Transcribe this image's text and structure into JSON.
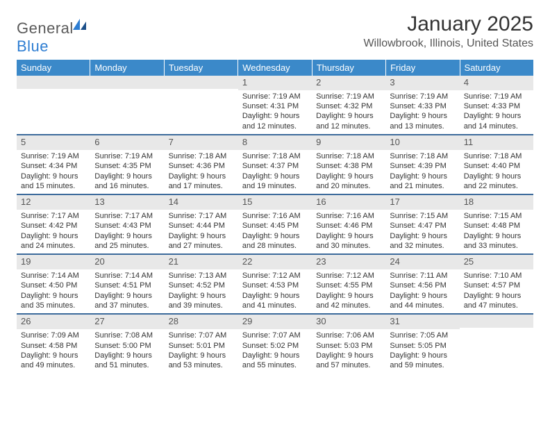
{
  "logo": {
    "word1": "General",
    "word2": "Blue"
  },
  "title": "January 2025",
  "location": "Willowbrook, Illinois, United States",
  "colors": {
    "header_bg": "#3b89c9",
    "header_text": "#ffffff",
    "daynum_bg": "#e8e8e8",
    "week_divider": "#3b6a9b",
    "body_text": "#333333",
    "logo_gray": "#5a5a5a",
    "logo_blue": "#2d7dd2"
  },
  "fonts": {
    "base_family": "Arial",
    "title_size_pt": 22,
    "header_size_pt": 10,
    "body_size_pt": 8
  },
  "day_names": [
    "Sunday",
    "Monday",
    "Tuesday",
    "Wednesday",
    "Thursday",
    "Friday",
    "Saturday"
  ],
  "weeks": [
    [
      null,
      null,
      null,
      {
        "n": "1",
        "sr": "7:19 AM",
        "ss": "4:31 PM",
        "dl": "9 hours and 12 minutes."
      },
      {
        "n": "2",
        "sr": "7:19 AM",
        "ss": "4:32 PM",
        "dl": "9 hours and 12 minutes."
      },
      {
        "n": "3",
        "sr": "7:19 AM",
        "ss": "4:33 PM",
        "dl": "9 hours and 13 minutes."
      },
      {
        "n": "4",
        "sr": "7:19 AM",
        "ss": "4:33 PM",
        "dl": "9 hours and 14 minutes."
      }
    ],
    [
      {
        "n": "5",
        "sr": "7:19 AM",
        "ss": "4:34 PM",
        "dl": "9 hours and 15 minutes."
      },
      {
        "n": "6",
        "sr": "7:19 AM",
        "ss": "4:35 PM",
        "dl": "9 hours and 16 minutes."
      },
      {
        "n": "7",
        "sr": "7:18 AM",
        "ss": "4:36 PM",
        "dl": "9 hours and 17 minutes."
      },
      {
        "n": "8",
        "sr": "7:18 AM",
        "ss": "4:37 PM",
        "dl": "9 hours and 19 minutes."
      },
      {
        "n": "9",
        "sr": "7:18 AM",
        "ss": "4:38 PM",
        "dl": "9 hours and 20 minutes."
      },
      {
        "n": "10",
        "sr": "7:18 AM",
        "ss": "4:39 PM",
        "dl": "9 hours and 21 minutes."
      },
      {
        "n": "11",
        "sr": "7:18 AM",
        "ss": "4:40 PM",
        "dl": "9 hours and 22 minutes."
      }
    ],
    [
      {
        "n": "12",
        "sr": "7:17 AM",
        "ss": "4:42 PM",
        "dl": "9 hours and 24 minutes."
      },
      {
        "n": "13",
        "sr": "7:17 AM",
        "ss": "4:43 PM",
        "dl": "9 hours and 25 minutes."
      },
      {
        "n": "14",
        "sr": "7:17 AM",
        "ss": "4:44 PM",
        "dl": "9 hours and 27 minutes."
      },
      {
        "n": "15",
        "sr": "7:16 AM",
        "ss": "4:45 PM",
        "dl": "9 hours and 28 minutes."
      },
      {
        "n": "16",
        "sr": "7:16 AM",
        "ss": "4:46 PM",
        "dl": "9 hours and 30 minutes."
      },
      {
        "n": "17",
        "sr": "7:15 AM",
        "ss": "4:47 PM",
        "dl": "9 hours and 32 minutes."
      },
      {
        "n": "18",
        "sr": "7:15 AM",
        "ss": "4:48 PM",
        "dl": "9 hours and 33 minutes."
      }
    ],
    [
      {
        "n": "19",
        "sr": "7:14 AM",
        "ss": "4:50 PM",
        "dl": "9 hours and 35 minutes."
      },
      {
        "n": "20",
        "sr": "7:14 AM",
        "ss": "4:51 PM",
        "dl": "9 hours and 37 minutes."
      },
      {
        "n": "21",
        "sr": "7:13 AM",
        "ss": "4:52 PM",
        "dl": "9 hours and 39 minutes."
      },
      {
        "n": "22",
        "sr": "7:12 AM",
        "ss": "4:53 PM",
        "dl": "9 hours and 41 minutes."
      },
      {
        "n": "23",
        "sr": "7:12 AM",
        "ss": "4:55 PM",
        "dl": "9 hours and 42 minutes."
      },
      {
        "n": "24",
        "sr": "7:11 AM",
        "ss": "4:56 PM",
        "dl": "9 hours and 44 minutes."
      },
      {
        "n": "25",
        "sr": "7:10 AM",
        "ss": "4:57 PM",
        "dl": "9 hours and 47 minutes."
      }
    ],
    [
      {
        "n": "26",
        "sr": "7:09 AM",
        "ss": "4:58 PM",
        "dl": "9 hours and 49 minutes."
      },
      {
        "n": "27",
        "sr": "7:08 AM",
        "ss": "5:00 PM",
        "dl": "9 hours and 51 minutes."
      },
      {
        "n": "28",
        "sr": "7:07 AM",
        "ss": "5:01 PM",
        "dl": "9 hours and 53 minutes."
      },
      {
        "n": "29",
        "sr": "7:07 AM",
        "ss": "5:02 PM",
        "dl": "9 hours and 55 minutes."
      },
      {
        "n": "30",
        "sr": "7:06 AM",
        "ss": "5:03 PM",
        "dl": "9 hours and 57 minutes."
      },
      {
        "n": "31",
        "sr": "7:05 AM",
        "ss": "5:05 PM",
        "dl": "9 hours and 59 minutes."
      },
      null
    ]
  ],
  "labels": {
    "sunrise": "Sunrise:",
    "sunset": "Sunset:",
    "daylight": "Daylight:"
  }
}
